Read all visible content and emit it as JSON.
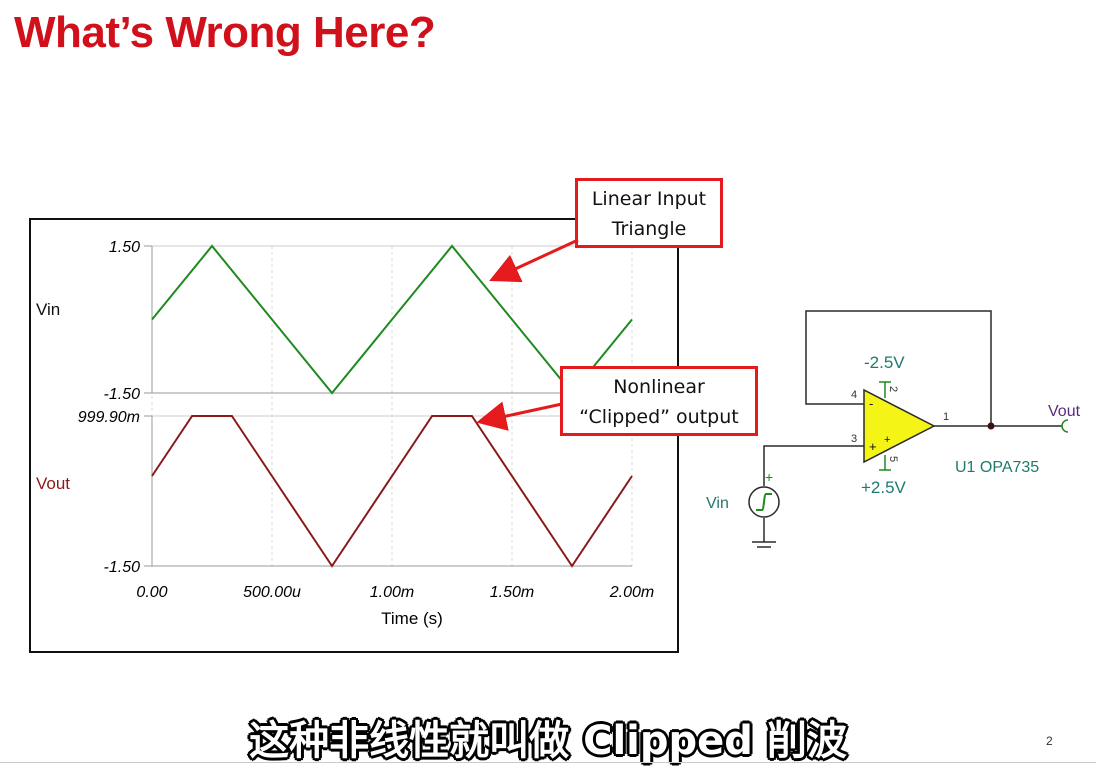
{
  "slide": {
    "title": "What’s Wrong Here?",
    "subtitle": "这种非线性就叫做 Clipped 削波",
    "page_number": "2"
  },
  "callouts": {
    "input": [
      "Linear Input",
      "Triangle"
    ],
    "output": [
      "Nonlinear",
      "“Clipped” output"
    ]
  },
  "chart_data": {
    "type": "line",
    "xlabel": "Time (s)",
    "x_ticks": [
      "0.00",
      "500.00u",
      "1.00m",
      "1.50m",
      "2.00m"
    ],
    "xlim": [
      0,
      0.002
    ],
    "colors": {
      "vin": "#1e8a1e",
      "vout": "#8b1a1a"
    },
    "grid": true,
    "series": [
      {
        "name": "Vin",
        "ylim": [
          -1.5,
          1.5
        ],
        "y_ticks": [
          "1.50",
          "-1.50"
        ],
        "x": [
          0,
          0.00025,
          0.00075,
          0.00125,
          0.00175,
          0.002
        ],
        "y": [
          0,
          1.5,
          -1.5,
          1.5,
          -1.5,
          0
        ]
      },
      {
        "name": "Vout",
        "ylim": [
          -1.5,
          0.9999
        ],
        "y_ticks": [
          "999.90m",
          "-1.50"
        ],
        "x": [
          0,
          0.000167,
          0.000333,
          0.00075,
          0.001167,
          0.001333,
          0.00175,
          0.002
        ],
        "y": [
          0,
          0.9999,
          0.9999,
          -1.5,
          0.9999,
          0.9999,
          -1.5,
          0
        ]
      }
    ]
  },
  "schematic": {
    "neg_supply": "-2.5V",
    "pos_supply": "+2.5V",
    "part": "U1 OPA735",
    "vin_label": "Vin",
    "vout_label": "Vout",
    "pins": {
      "p1": "1",
      "p2": "2",
      "p3": "3",
      "p4": "4",
      "p5": "5"
    },
    "plus_sign": "+",
    "minus_sign": "-",
    "colors": {
      "wire": "#2a2a2a",
      "opamp_fill": "#f4f416",
      "label": "#1f7a6e",
      "vout": "#5a2a7a"
    }
  }
}
